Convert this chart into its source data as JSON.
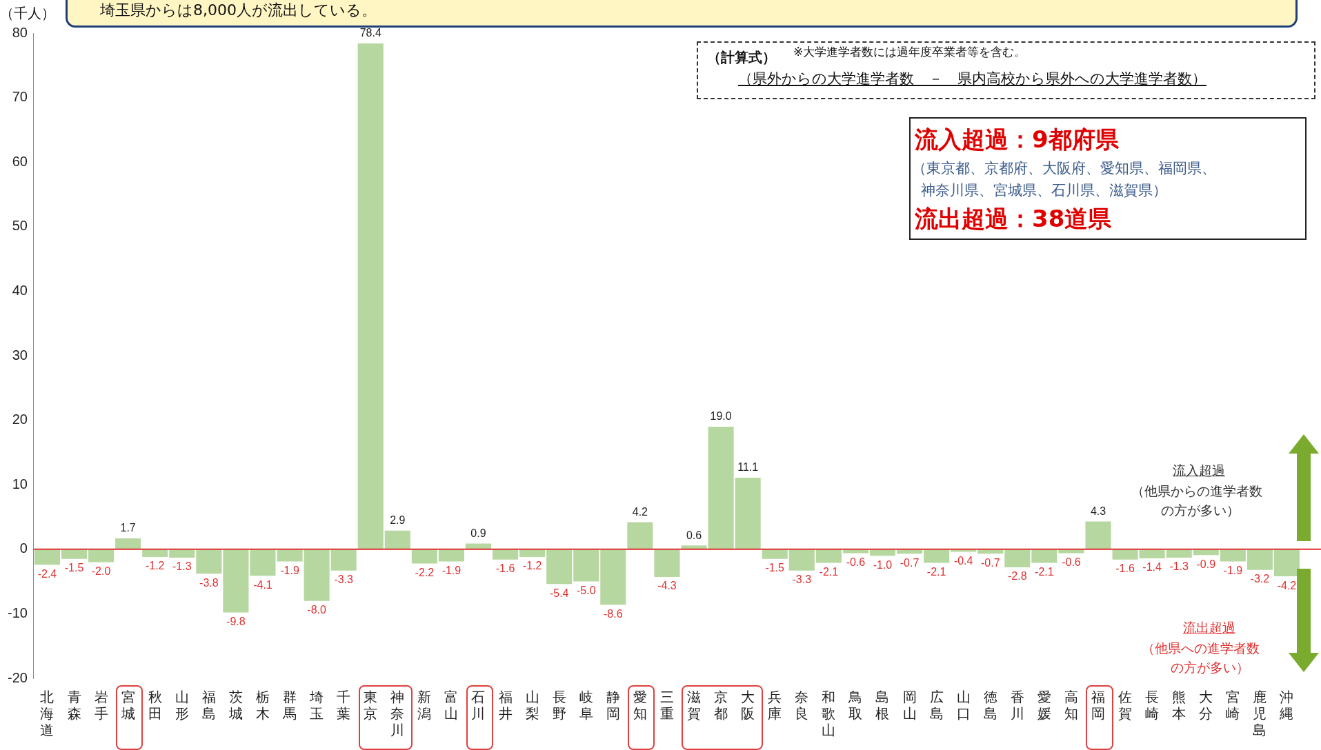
{
  "chart_data": {
    "type": "bar",
    "ylabel": "（千人）",
    "categories": [
      "北海道",
      "青森",
      "岩手",
      "宮城",
      "秋田",
      "山形",
      "福島",
      "茨城",
      "栃木",
      "群馬",
      "埼玉",
      "千葉",
      "東京",
      "神奈川",
      "新潟",
      "富山",
      "石川",
      "福井",
      "山梨",
      "長野",
      "岐阜",
      "静岡",
      "愛知",
      "三重",
      "滋賀",
      "京都",
      "大阪",
      "兵庫",
      "奈良",
      "和歌山",
      "鳥取",
      "島根",
      "岡山",
      "広島",
      "山口",
      "徳島",
      "香川",
      "愛媛",
      "高知",
      "福岡",
      "佐賀",
      "長崎",
      "熊本",
      "大分",
      "宮崎",
      "鹿児島",
      "沖縄"
    ],
    "values": [
      -2.4,
      -1.5,
      -2.0,
      1.7,
      -1.2,
      -1.3,
      -3.8,
      -9.8,
      -4.1,
      -1.9,
      -8.0,
      -3.3,
      78.4,
      2.9,
      -2.2,
      -1.9,
      0.9,
      -1.6,
      -1.2,
      -5.4,
      -5.0,
      -8.6,
      4.2,
      -4.3,
      0.6,
      19.0,
      11.1,
      -1.5,
      -3.3,
      -2.1,
      -0.6,
      -1.0,
      -0.7,
      -2.1,
      -0.4,
      -0.7,
      -2.8,
      -2.1,
      -0.6,
      4.3,
      -1.6,
      -1.4,
      -1.3,
      -0.9,
      -1.9,
      -3.2,
      -4.2
    ],
    "value_labels": [
      "-2.4",
      "-1.5",
      "-2.0",
      "1.7",
      "-1.2",
      "-1.3",
      "-3.8",
      "-9.8",
      "-4.1",
      "-1.9",
      "-8.0",
      "-3.3",
      "78.4",
      "2.9",
      "-2.2",
      "-1.9",
      "0.9",
      "-1.6",
      "-1.2",
      "-5.4",
      "-5.0",
      "-8.6",
      "4.2",
      "-4.3",
      "0.6",
      "19.0",
      "11.1",
      "-1.5",
      "-3.3",
      "-2.1",
      "-0.6",
      "-1.0",
      "-0.7",
      "-2.1",
      "-0.4",
      "-0.7",
      "-2.8",
      "-2.1",
      "-0.6",
      "4.3",
      "-1.6",
      "-1.4",
      "-1.3",
      "-0.9",
      "-1.9",
      "-3.2",
      "-4.2"
    ],
    "color": "#b7d7a0",
    "ylim": [
      -20,
      80
    ],
    "yticks": [
      -20,
      -10,
      0,
      10,
      20,
      30,
      40,
      50,
      60,
      70,
      80
    ],
    "grid": false,
    "legend": false,
    "ref_lines": [
      {
        "axis": "y",
        "value": 0,
        "color": "#e03030"
      }
    ],
    "annotations": [
      "埼玉県からは8,000人が流出している。",
      "（計算式）",
      "※大学進学者数には過年度卒業者等を含む。",
      "（県外からの大学進学者数　－　県内高校から県外への大学進学者数）",
      "流入超過：9都府県",
      "（東京都、京都府、大阪府、愛知県、福岡県、",
      "神奈川県、宮城県、石川県、滋賀県）",
      "流出超過：38道県",
      "流入超過",
      "（他県からの進学者数",
      "の方が多い）",
      "流出超過",
      "（他県への進学者数",
      "の方が多い）"
    ]
  }
}
